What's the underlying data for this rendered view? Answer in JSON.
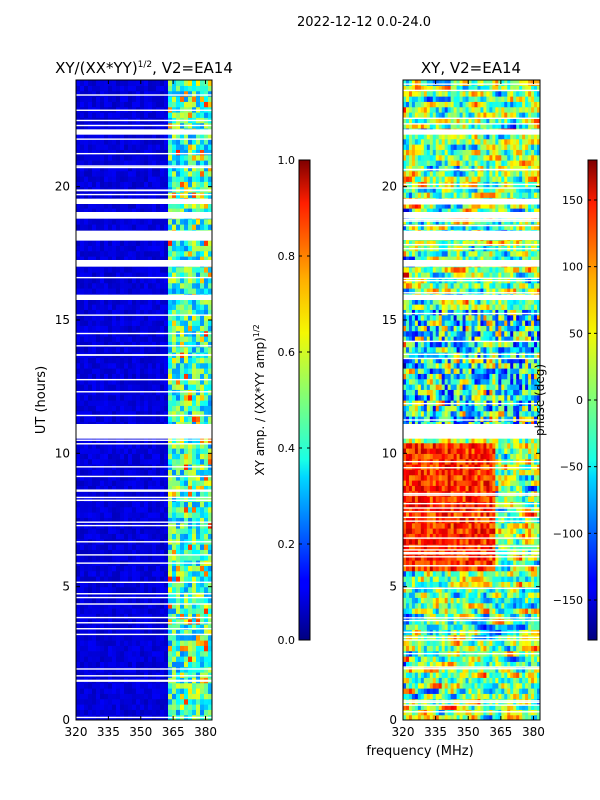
{
  "figure": {
    "suptitle": "2022-12-12 0.0-24.0",
    "shared_xlabel": "frequency (MHz)"
  },
  "chart_data": [
    {
      "type": "heatmap",
      "title_main": "XY/(XX*YY)",
      "title_sup": "1/2",
      "title_tail": ", V2=EA14",
      "xlim": [
        320,
        383
      ],
      "ylim": [
        0,
        24
      ],
      "xticks": [
        320,
        335,
        350,
        365,
        380
      ],
      "yticks": [
        0,
        5,
        10,
        15,
        20
      ],
      "ylabel": "UT (hours)",
      "colorbar": {
        "label_main": "XY amp. / (XX*YY amp)",
        "label_sup": "1/2",
        "range": [
          0.0,
          1.0
        ],
        "ticks": [
          "0.0",
          "0.2",
          "0.4",
          "0.6",
          "0.8",
          "1.0"
        ],
        "colormap": "jet"
      },
      "flagged_hours": [
        [
          10.55,
          11.1
        ],
        [
          15.75,
          15.95
        ],
        [
          17.0,
          17.25
        ],
        [
          18.0,
          18.35
        ],
        [
          18.8,
          19.05
        ],
        [
          19.35,
          19.55
        ],
        [
          21.95,
          22.15
        ]
      ],
      "bright_band_mhz": [
        362,
        382
      ]
    },
    {
      "type": "heatmap",
      "title": "XY, V2=EA14",
      "xlim": [
        320,
        383
      ],
      "ylim": [
        0,
        24
      ],
      "xticks": [
        320,
        335,
        350,
        365,
        380
      ],
      "yticks": [
        0,
        5,
        10,
        15,
        20
      ],
      "colorbar": {
        "label": "phase (deg)",
        "range": [
          -180,
          180
        ],
        "ticks": [
          "-150",
          "-100",
          "-50",
          "0",
          "50",
          "100",
          "150"
        ],
        "colormap": "jet"
      },
      "flagged_hours": [
        [
          10.55,
          11.1
        ],
        [
          15.75,
          15.95
        ],
        [
          17.0,
          17.25
        ],
        [
          18.0,
          18.35
        ],
        [
          18.8,
          19.05
        ],
        [
          19.35,
          19.55
        ],
        [
          21.95,
          22.15
        ]
      ]
    }
  ]
}
